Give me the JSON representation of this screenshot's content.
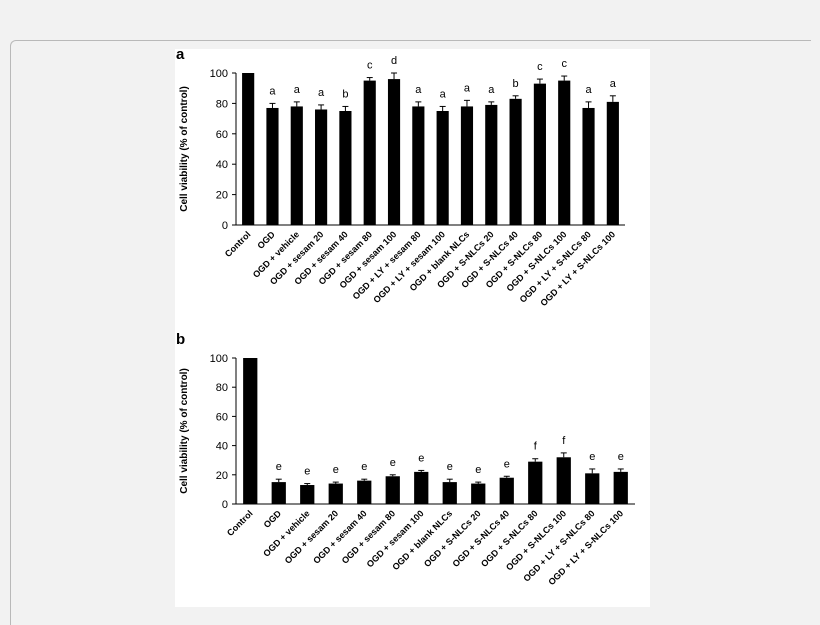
{
  "chart_data": [
    {
      "type": "bar",
      "panel_label": "a",
      "ylabel": "Cell viability (% of control)",
      "xlabel": "",
      "ylim": [
        0,
        100
      ],
      "yticks": [
        0,
        20,
        40,
        60,
        80,
        100
      ],
      "categories": [
        "Control",
        "OGD",
        "OGD + vehicle",
        "OGD + sesam 20",
        "OGD + sesam 40",
        "OGD + sesam 80",
        "OGD + sesam 100",
        "OGD + LY + sesam 80",
        "OGD + LY + sesam 100",
        "OGD + blank NLCs",
        "OGD + S-NLCs 20",
        "OGD + S-NLCs 40",
        "OGD + S-NLCs 80",
        "OGD + S-NLCs 100",
        "OGD + LY + S-NLCs 80",
        "OGD + LY + S-NLCs 100"
      ],
      "values": [
        100,
        77,
        78,
        76,
        75,
        95,
        96,
        78,
        75,
        78,
        79,
        83,
        93,
        95,
        77,
        81
      ],
      "errors": [
        0,
        3,
        3,
        3,
        3,
        2,
        4,
        3,
        3,
        4,
        2,
        2,
        3,
        3,
        4,
        4
      ],
      "significance": [
        "",
        "a",
        "a",
        "a",
        "b",
        "c",
        "d",
        "a",
        "a",
        "a",
        "a",
        "b",
        "c",
        "c",
        "a",
        "a"
      ],
      "bar_color": "#000000"
    },
    {
      "type": "bar",
      "panel_label": "b",
      "ylabel": "Cell viability (% of control)",
      "xlabel": "",
      "ylim": [
        0,
        100
      ],
      "yticks": [
        0,
        20,
        40,
        60,
        80,
        100
      ],
      "categories": [
        "Control",
        "OGD",
        "OGD + vehicle",
        "OGD + sesam 20",
        "OGD + sesam 40",
        "OGD + sesam 80",
        "OGD + sesam 100",
        "OGD + blank NLCs",
        "OGD + S-NLCs 20",
        "OGD + S-NLCs 40",
        "OGD + S-NLCs 80",
        "OGD + S-NLCs 100",
        "OGD + LY + S-NLCs 80",
        "OGD + LY + S-NLCs 100"
      ],
      "values": [
        100,
        15,
        13,
        14,
        16,
        19,
        22,
        15,
        14,
        18,
        29,
        32,
        21,
        22
      ],
      "errors": [
        0,
        2,
        1,
        1,
        1,
        1,
        1,
        2,
        1,
        1,
        2,
        3,
        3,
        2
      ],
      "significance": [
        "",
        "e",
        "e",
        "e",
        "e",
        "e",
        "e",
        "e",
        "e",
        "e",
        "f",
        "f",
        "e",
        "e"
      ],
      "bar_color": "#000000"
    }
  ]
}
